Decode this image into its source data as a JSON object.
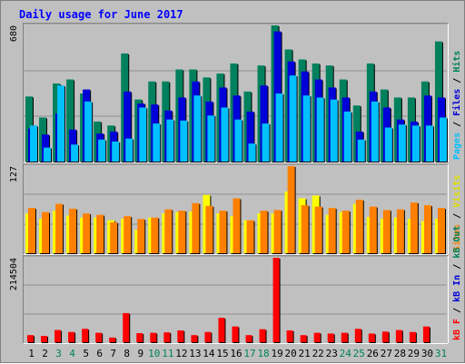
{
  "title": "Daily usage for June 2017",
  "colors": {
    "hits": "#00805c",
    "files": "#0000d8",
    "pages": "#00c0ff",
    "visits": "#ffff00",
    "sites": "#ff8000",
    "kbytes": "#ff0000",
    "kb_in": "#0000d8",
    "kb_out": "#00805c",
    "title_text": "#0000ff",
    "day_weekday": "#000000",
    "day_weekend": "#00805c"
  },
  "chart_data": [
    {
      "type": "bar",
      "y_max_label": "680",
      "ylim": [
        0,
        680
      ],
      "categories": [
        "1",
        "2",
        "3",
        "4",
        "5",
        "6",
        "7",
        "8",
        "9",
        "10",
        "11",
        "12",
        "13",
        "14",
        "15",
        "16",
        "17",
        "18",
        "19",
        "20",
        "21",
        "22",
        "23",
        "24",
        "25",
        "26",
        "27",
        "28",
        "29",
        "30",
        "31"
      ],
      "legend": [
        "Pages",
        "Files",
        "Hits"
      ],
      "series": [
        {
          "name": "Hits",
          "values": [
            325,
            220,
            390,
            410,
            340,
            200,
            180,
            540,
            310,
            400,
            400,
            460,
            460,
            420,
            440,
            490,
            350,
            480,
            680,
            560,
            510,
            490,
            480,
            410,
            280,
            490,
            360,
            320,
            320,
            400,
            600
          ]
        },
        {
          "name": "Files",
          "values": [
            165,
            135,
            240,
            160,
            360,
            140,
            150,
            350,
            290,
            285,
            255,
            320,
            400,
            300,
            370,
            330,
            250,
            380,
            650,
            500,
            450,
            410,
            370,
            320,
            150,
            350,
            270,
            210,
            200,
            330,
            320
          ]
        },
        {
          "name": "Pages",
          "values": [
            180,
            70,
            380,
            85,
            300,
            110,
            100,
            115,
            270,
            190,
            210,
            205,
            330,
            230,
            270,
            210,
            90,
            190,
            340,
            430,
            330,
            320,
            310,
            250,
            110,
            300,
            170,
            185,
            180,
            180,
            220
          ]
        }
      ]
    },
    {
      "type": "bar",
      "y_max_label": "127",
      "ylim": [
        0,
        127
      ],
      "categories": [
        "1",
        "2",
        "3",
        "4",
        "5",
        "6",
        "7",
        "8",
        "9",
        "10",
        "11",
        "12",
        "13",
        "14",
        "15",
        "16",
        "17",
        "18",
        "19",
        "20",
        "21",
        "22",
        "23",
        "24",
        "25",
        "26",
        "27",
        "28",
        "29",
        "30",
        "31"
      ],
      "legend": [
        "Sites",
        "Visits"
      ],
      "series": [
        {
          "name": "Visits",
          "values": [
            58,
            50,
            62,
            55,
            52,
            52,
            48,
            50,
            34,
            52,
            58,
            60,
            61,
            85,
            58,
            54,
            48,
            58,
            58,
            90,
            80,
            84,
            56,
            60,
            72,
            53,
            50,
            52,
            50,
            47,
            50
          ]
        },
        {
          "name": "Sites",
          "values": [
            66,
            60,
            72,
            65,
            58,
            56,
            45,
            54,
            50,
            52,
            64,
            62,
            73,
            69,
            62,
            80,
            48,
            62,
            63,
            127,
            70,
            68,
            66,
            62,
            78,
            68,
            63,
            64,
            74,
            70,
            66
          ]
        }
      ]
    },
    {
      "type": "bar",
      "y_max_label": "214504",
      "ylim": [
        0,
        214504
      ],
      "categories": [
        "1",
        "2",
        "3",
        "4",
        "5",
        "6",
        "7",
        "8",
        "9",
        "10",
        "11",
        "12",
        "13",
        "14",
        "15",
        "16",
        "17",
        "18",
        "19",
        "20",
        "21",
        "22",
        "23",
        "24",
        "25",
        "26",
        "27",
        "28",
        "29",
        "30",
        "31"
      ],
      "legend": [
        "KB F",
        "KB In",
        "KB Out"
      ],
      "series": [
        {
          "name": "KB F",
          "values": [
            18000,
            16000,
            31000,
            26000,
            34000,
            24000,
            12000,
            74000,
            23000,
            24000,
            25000,
            30000,
            18000,
            26000,
            62000,
            40000,
            18000,
            33000,
            214504,
            30000,
            18000,
            24000,
            22000,
            24000,
            34000,
            22000,
            27000,
            31000,
            26000,
            40000,
            0
          ]
        }
      ]
    }
  ],
  "right_labels": [
    {
      "parts": [
        {
          "text": "Pages",
          "color": "#00c0ff"
        },
        {
          "text": " / ",
          "color": "#000000"
        },
        {
          "text": "Files",
          "color": "#0000d8"
        },
        {
          "text": " / ",
          "color": "#000000"
        },
        {
          "text": "Hits",
          "color": "#00805c"
        }
      ]
    },
    {
      "parts": [
        {
          "text": "Sites",
          "color": "#ff8000"
        },
        {
          "text": " / ",
          "color": "#000000"
        },
        {
          "text": "Visits",
          "color": "#e0e000"
        }
      ]
    },
    {
      "parts": [
        {
          "text": "kB F",
          "color": "#ff0000"
        },
        {
          "text": " / ",
          "color": "#000000"
        },
        {
          "text": "kB In",
          "color": "#0000d8"
        },
        {
          "text": " / ",
          "color": "#000000"
        },
        {
          "text": "kB Out",
          "color": "#00805c"
        }
      ]
    }
  ],
  "weekend_days": [
    "3",
    "4",
    "10",
    "11",
    "17",
    "18",
    "24",
    "25",
    "31"
  ]
}
